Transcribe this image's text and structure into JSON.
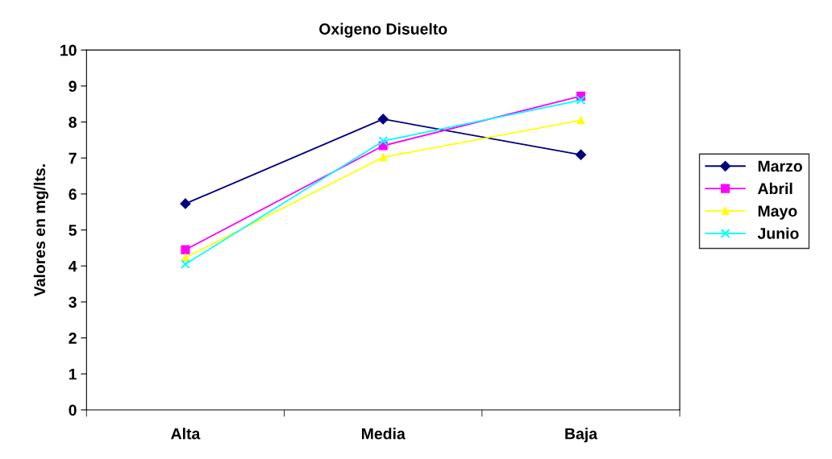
{
  "chart_data": {
    "type": "line",
    "title": "Oxigeno Disuelto",
    "ylabel": "Valores en mg/lts.",
    "categories": [
      "Alta",
      "Media",
      "Baja"
    ],
    "series": [
      {
        "name": "Marzo",
        "color": "#000080",
        "marker": "diamond",
        "values": [
          5.73,
          8.08,
          7.09
        ]
      },
      {
        "name": "Abril",
        "color": "#ff00ff",
        "marker": "square",
        "values": [
          4.45,
          7.34,
          8.72
        ]
      },
      {
        "name": "Mayo",
        "color": "#ffff00",
        "marker": "triangle",
        "values": [
          4.23,
          7.02,
          8.05
        ]
      },
      {
        "name": "Junio",
        "color": "#00ffff",
        "marker": "cross",
        "values": [
          4.05,
          7.47,
          8.61
        ]
      }
    ],
    "ylim": [
      0,
      10
    ],
    "yticks": [
      0,
      1,
      2,
      3,
      4,
      5,
      6,
      7,
      8,
      9,
      10
    ],
    "grid": false,
    "legend": "right",
    "line_style": "solid"
  }
}
